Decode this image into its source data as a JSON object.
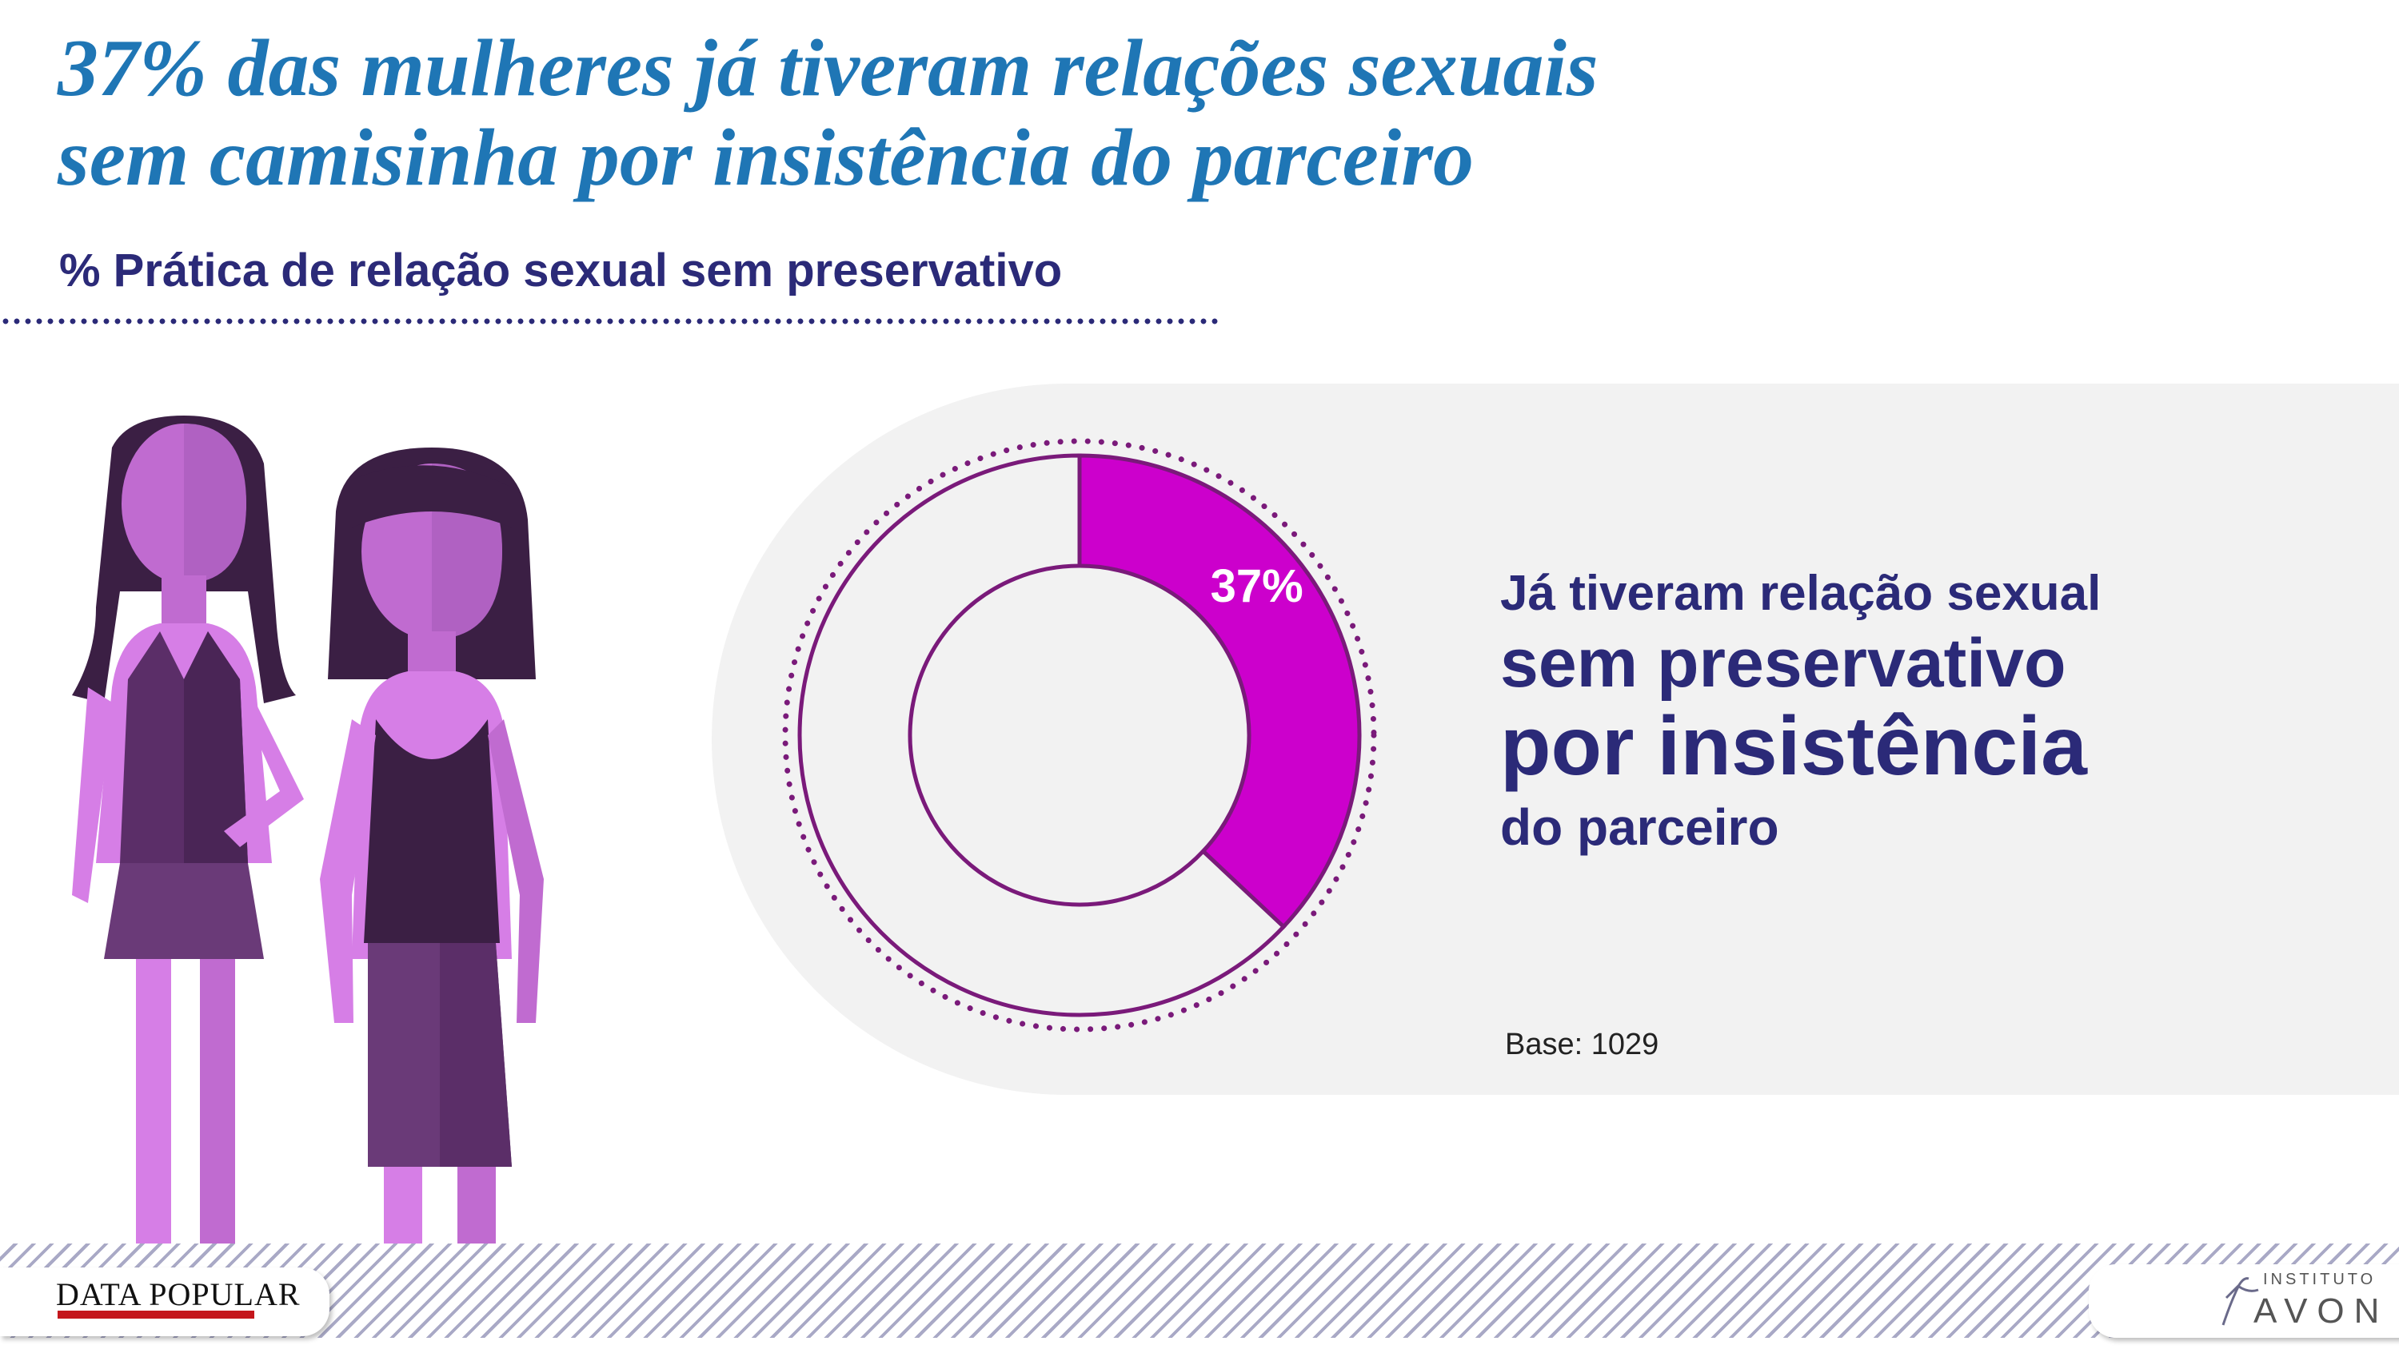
{
  "header": {
    "title_line1": "37% das mulheres já tiveram relações sexuais",
    "title_line2": "sem camisinha por insistência do parceiro",
    "subtitle": "% Prática de relação sexual sem preservativo"
  },
  "chart_data": {
    "type": "pie",
    "title": "% Prática de relação sexual sem preservativo",
    "slices": [
      {
        "label": "Já tiveram relação sexual sem preservativo por insistência do parceiro",
        "value": 37
      },
      {
        "label": "",
        "value": 63
      }
    ],
    "data_label": "37%",
    "colors": {
      "highlight": "#cc00cc",
      "rest": "#f2f2f2",
      "outline": "#7a1a7a"
    }
  },
  "callout": {
    "line1": "Já tiveram relação sexual",
    "line2": "sem preservativo",
    "line3": "por insistência",
    "line4": "do parceiro"
  },
  "base_label": "Base: 1029",
  "logos": {
    "left": "DATA POPULAR",
    "right_line1": "INSTITUTO",
    "right_line2": "AVON"
  },
  "colors": {
    "title": "#1f76b5",
    "subtitle": "#2b2a78",
    "accent": "#cc00cc",
    "panel": "#f2f2f2"
  },
  "icons": [
    "women-illustration-icon",
    "avon-figure-icon"
  ]
}
